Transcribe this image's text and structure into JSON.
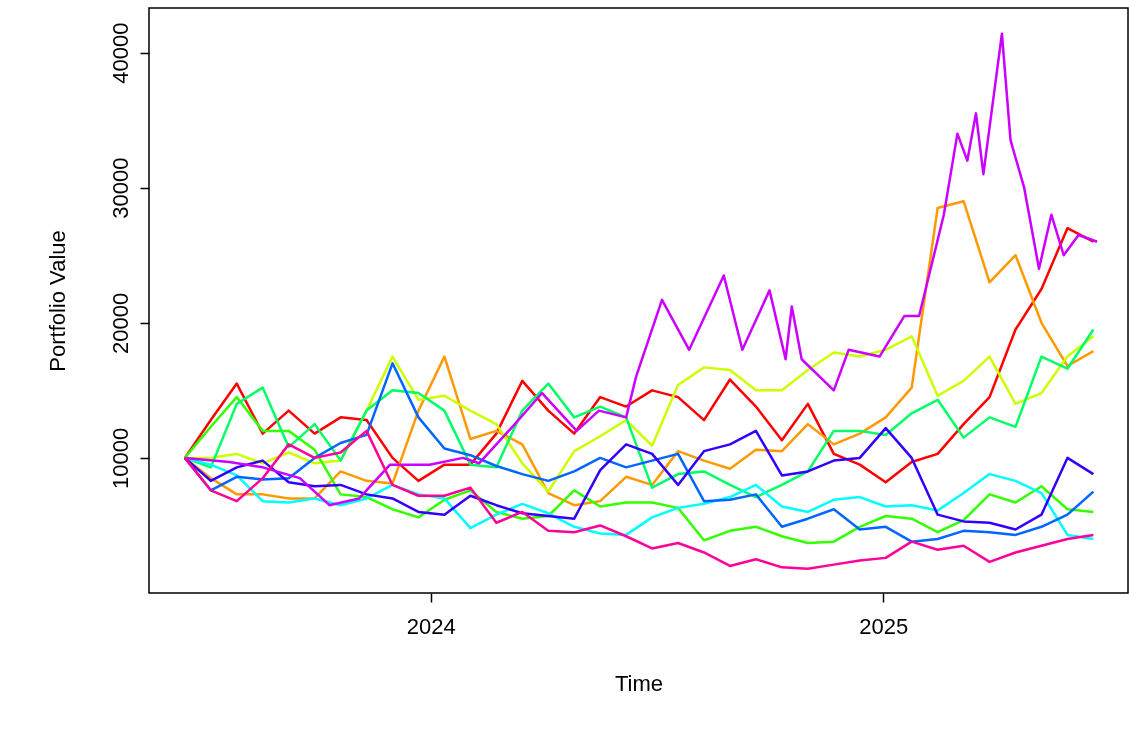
{
  "chart_data": {
    "type": "line",
    "xlabel": "Time",
    "ylabel": "Portfolio Value",
    "x": [
      "2023-06-16",
      "2023-07-07",
      "2023-07-28",
      "2023-08-18",
      "2023-09-08",
      "2023-09-29",
      "2023-10-20",
      "2023-11-10",
      "2023-12-01",
      "2023-12-22",
      "2024-01-12",
      "2024-02-02",
      "2024-02-23",
      "2024-03-15",
      "2024-04-05",
      "2024-04-26",
      "2024-05-17",
      "2024-06-07",
      "2024-06-28",
      "2024-07-19",
      "2024-08-09",
      "2024-08-30",
      "2024-09-20",
      "2024-10-11",
      "2024-11-01",
      "2024-11-22",
      "2024-12-13",
      "2025-01-03",
      "2025-01-24",
      "2025-02-14",
      "2025-03-07",
      "2025-03-28",
      "2025-04-18",
      "2025-05-09",
      "2025-05-30",
      "2025-06-20"
    ],
    "series": [
      {
        "color": "#ff0000",
        "values": [
          10000,
          12800,
          15500,
          11800,
          13500,
          11800,
          13000,
          12800,
          10000,
          8300,
          9500,
          9500,
          11800,
          15700,
          13500,
          11800,
          14500,
          13800,
          15000,
          14500,
          12800,
          15800,
          13800,
          11300,
          14000,
          10300,
          9500,
          8200,
          9700,
          10300,
          12500,
          14500,
          19500,
          22500,
          27000,
          26000
        ]
      },
      {
        "color": "#ff9900",
        "values": [
          10000,
          8500,
          7300,
          7300,
          7000,
          7000,
          9000,
          8300,
          8100,
          13500,
          17500,
          11400,
          12000,
          11000,
          7400,
          6500,
          6800,
          8600,
          8000,
          10500,
          9800,
          9200,
          10600,
          10500,
          12500,
          11000,
          11800,
          13000,
          15200,
          28500,
          29000,
          23000,
          25000,
          20000,
          16800,
          17900
        ]
      },
      {
        "color": "#ccff00",
        "values": [
          10000,
          10000,
          10300,
          9600,
          10400,
          9600,
          9800,
          13500,
          17500,
          14300,
          14600,
          13500,
          12500,
          9600,
          7500,
          10500,
          11600,
          12800,
          10900,
          15400,
          16700,
          16500,
          15000,
          15000,
          16500,
          17800,
          17500,
          18000,
          19000,
          14600,
          15700,
          17500,
          14000,
          14800,
          17500,
          19000
        ]
      },
      {
        "color": "#33ff00",
        "values": [
          10000,
          12300,
          14500,
          12000,
          12000,
          10600,
          7300,
          7100,
          6200,
          5600,
          6900,
          7600,
          6000,
          5500,
          5700,
          7600,
          6400,
          6700,
          6700,
          6300,
          3900,
          4600,
          4900,
          4200,
          3700,
          3800,
          4900,
          5700,
          5500,
          4500,
          5400,
          7300,
          6700,
          7900,
          6200,
          6000
        ]
      },
      {
        "color": "#00ff66",
        "values": [
          10000,
          9300,
          14000,
          15200,
          10800,
          12500,
          9800,
          13500,
          15000,
          14800,
          13500,
          9500,
          9300,
          13500,
          15500,
          13000,
          13800,
          13000,
          7800,
          8800,
          9000,
          8000,
          7100,
          8000,
          9000,
          12000,
          12000,
          11700,
          13300,
          14300,
          11500,
          13000,
          12300,
          17500,
          16600,
          19500
        ]
      },
      {
        "color": "#00ffff",
        "values": [
          10000,
          9500,
          8700,
          6800,
          6700,
          7000,
          6500,
          7000,
          8000,
          7300,
          7000,
          4800,
          5800,
          6600,
          5900,
          4900,
          4400,
          4300,
          5600,
          6300,
          6600,
          7100,
          8000,
          6400,
          6000,
          6900,
          7100,
          6400,
          6500,
          6100,
          7400,
          8800,
          8300,
          7400,
          4300,
          4000
        ]
      },
      {
        "color": "#0066ff",
        "values": [
          10000,
          7600,
          8600,
          8400,
          8500,
          10000,
          11100,
          11700,
          17000,
          13000,
          10700,
          10200,
          9400,
          8800,
          8300,
          9000,
          10000,
          9300,
          9800,
          10300,
          6800,
          6900,
          7300,
          4900,
          5500,
          6200,
          4700,
          4900,
          3800,
          4000,
          4600,
          4500,
          4300,
          4900,
          5800,
          7500
        ]
      },
      {
        "color": "#3300ff",
        "values": [
          10000,
          8300,
          9300,
          9800,
          8200,
          7900,
          8000,
          7300,
          7000,
          6000,
          5800,
          7200,
          6500,
          5900,
          5700,
          5500,
          9100,
          11000,
          10300,
          8000,
          10500,
          11000,
          12000,
          8700,
          9000,
          9800,
          10000,
          12200,
          10000,
          5800,
          5300,
          5200,
          4700,
          5800,
          10000,
          8800
        ]
      },
      {
        "color": "#cc00ff",
        "x": [
          "2023-06-16",
          "2023-07-22",
          "2023-08-18",
          "2023-09-17",
          "2023-10-11",
          "2023-11-04",
          "2023-11-29",
          "2023-12-31",
          "2024-01-27",
          "2024-02-09",
          "2024-03-07",
          "2024-03-31",
          "2024-04-28",
          "2024-05-16",
          "2024-06-07",
          "2024-06-15",
          "2024-07-06",
          "2024-07-28",
          "2024-08-25",
          "2024-09-09",
          "2024-10-01",
          "2024-10-14",
          "2024-10-19",
          "2024-10-27",
          "2024-11-22",
          "2024-12-04",
          "2024-12-29",
          "2025-01-18",
          "2025-01-30",
          "2025-02-19",
          "2025-03-02",
          "2025-03-10",
          "2025-03-17",
          "2025-03-23",
          "2025-04-07",
          "2025-04-14",
          "2025-04-25",
          "2025-05-07",
          "2025-05-17",
          "2025-05-27",
          "2025-06-08",
          "2025-06-23"
        ],
        "values": [
          10000,
          9700,
          9300,
          8500,
          6500,
          7000,
          9500,
          9500,
          10000,
          9600,
          12300,
          14800,
          12000,
          13500,
          13000,
          16000,
          21700,
          18000,
          23500,
          18000,
          22400,
          17300,
          21200,
          17300,
          15000,
          18000,
          17500,
          20500,
          20500,
          28000,
          34000,
          32000,
          35500,
          31000,
          41400,
          33500,
          30000,
          24000,
          28000,
          25000,
          26500,
          26000
        ]
      },
      {
        "color": "#ff0099",
        "values": [
          10000,
          7600,
          6800,
          8500,
          11000,
          10000,
          10400,
          12000,
          8000,
          7200,
          7200,
          7800,
          5200,
          6000,
          4600,
          4500,
          5000,
          4200,
          3300,
          3700,
          3000,
          2000,
          2500,
          1900,
          1800,
          2100,
          2400,
          2600,
          3800,
          3200,
          3500,
          2300,
          3000,
          3500,
          4000,
          4300
        ]
      }
    ],
    "xlim": [
      "2023-05-18",
      "2025-07-18"
    ],
    "xticks": [
      {
        "value": "2024-01-01",
        "label": "2024"
      },
      {
        "value": "2025-01-01",
        "label": "2025"
      }
    ],
    "ylim": [
      0,
      43300
    ],
    "yticks": [
      10000,
      20000,
      30000,
      40000
    ],
    "grid": false,
    "marker": "none",
    "line_style": "solid"
  }
}
